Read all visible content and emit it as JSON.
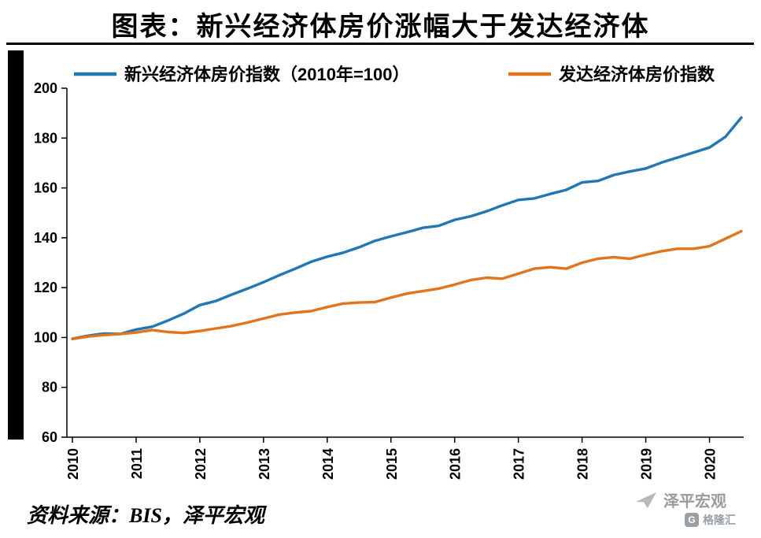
{
  "page": {
    "title": "图表：新兴经济体房价涨幅大于发达经济体",
    "source_note": "资料来源：BIS，泽平宏观",
    "watermark": "泽平宏观",
    "logo": {
      "text": "格隆汇",
      "monogram": "G"
    }
  },
  "chart_data": {
    "type": "line",
    "title": "新兴经济体房价涨幅大于发达经济体",
    "xlabel": "",
    "ylabel": "",
    "grid": false,
    "legend_position": "top",
    "ylim": [
      60,
      200
    ],
    "yticks": [
      60,
      80,
      100,
      120,
      140,
      160,
      180,
      200
    ],
    "xticks": [
      2010,
      2011,
      2012,
      2013,
      2014,
      2015,
      2016,
      2017,
      2018,
      2019,
      2020
    ],
    "x": [
      2010,
      2010.25,
      2010.5,
      2010.75,
      2011,
      2011.25,
      2011.5,
      2011.75,
      2012,
      2012.25,
      2012.5,
      2012.75,
      2013,
      2013.25,
      2013.5,
      2013.75,
      2014,
      2014.25,
      2014.5,
      2014.75,
      2015,
      2015.25,
      2015.5,
      2015.75,
      2016,
      2016.25,
      2016.5,
      2016.75,
      2017,
      2017.25,
      2017.5,
      2017.75,
      2018,
      2018.25,
      2018.5,
      2018.75,
      2019,
      2019.25,
      2019.5,
      2019.75,
      2020,
      2020.25,
      2020.5
    ],
    "series": [
      {
        "name": "新兴经济体房价指数（2010年=100）",
        "color": "#1f77b4",
        "values": [
          99.5,
          100.7,
          101.6,
          101.4,
          103.2,
          104.3,
          106.8,
          109.6,
          113.0,
          114.6,
          117.2,
          119.6,
          122.2,
          125.0,
          127.6,
          130.4,
          132.4,
          134.0,
          136.2,
          138.8,
          140.6,
          142.2,
          144.0,
          144.8,
          147.2,
          148.6,
          150.6,
          153.0,
          155.2,
          155.8,
          157.6,
          159.2,
          162.2,
          162.8,
          165.2,
          166.6,
          167.8,
          170.2,
          172.2,
          174.2,
          176.2,
          180.5,
          188.2
        ]
      },
      {
        "name": "发达经济体房价指数",
        "color": "#e2751c",
        "values": [
          99.4,
          100.4,
          101.0,
          101.4,
          102.0,
          103.0,
          102.2,
          101.8,
          102.6,
          103.6,
          104.6,
          106.0,
          107.6,
          109.2,
          110.0,
          110.6,
          112.2,
          113.6,
          114.0,
          114.2,
          116.0,
          117.6,
          118.6,
          119.6,
          121.2,
          123.0,
          124.0,
          123.6,
          125.6,
          127.6,
          128.2,
          127.6,
          130.0,
          131.6,
          132.2,
          131.6,
          133.2,
          134.6,
          135.6,
          135.6,
          136.6,
          139.6,
          142.6
        ]
      }
    ]
  }
}
